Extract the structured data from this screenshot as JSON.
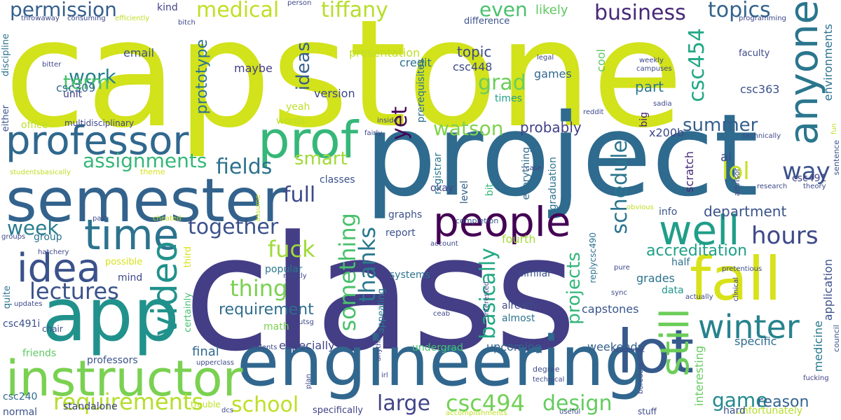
{
  "palette": [
    "#440154",
    "#482475",
    "#414487",
    "#355f8d",
    "#2a788e",
    "#21918c",
    "#22a884",
    "#44bf70",
    "#7ad151",
    "#bddf26"
  ],
  "words": [
    {
      "text": "capstone",
      "c": "#d2e21b"
    },
    {
      "text": "project",
      "c": "#2e6b8e"
    },
    {
      "text": "class",
      "c": "#433e85"
    },
    {
      "text": "engineering",
      "c": "#31678e"
    },
    {
      "text": "semester",
      "c": "#33638d"
    },
    {
      "text": "professor",
      "c": "#30688e"
    },
    {
      "text": "instructor",
      "c": "#7ad151"
    },
    {
      "text": "app",
      "c": "#21918c"
    },
    {
      "text": "idea",
      "c": "#3b528b"
    },
    {
      "text": "time",
      "c": "#2c738e"
    },
    {
      "text": "video",
      "c": "#21918c"
    },
    {
      "text": "prof",
      "c": "#35b779"
    },
    {
      "text": "people",
      "c": "#440154"
    },
    {
      "text": "fall",
      "c": "#d8e219"
    },
    {
      "text": "lot",
      "c": "#375a8c"
    },
    {
      "text": "well",
      "c": "#1f9e89"
    },
    {
      "text": "anyone",
      "c": "#2a768e"
    },
    {
      "text": "still",
      "c": "#6ccd5a"
    },
    {
      "text": "winter",
      "c": "#26828e"
    },
    {
      "text": "hours",
      "c": "#3e4989"
    },
    {
      "text": "lol",
      "c": "#c8e020"
    },
    {
      "text": "way",
      "c": "#3b528b"
    },
    {
      "text": "csc454",
      "c": "#22a884"
    },
    {
      "text": "topics",
      "c": "#33638d"
    },
    {
      "text": "business",
      "c": "#482878"
    },
    {
      "text": "tiffany",
      "c": "#b5de2b"
    },
    {
      "text": "medical",
      "c": "#c0df25"
    },
    {
      "text": "permission",
      "c": "#355f8d"
    },
    {
      "text": "work",
      "c": "#26828e"
    },
    {
      "text": "term",
      "c": "#4ac16d"
    },
    {
      "text": "assignments",
      "c": "#35b779"
    },
    {
      "text": "lectures",
      "c": "#3b528b"
    },
    {
      "text": "week",
      "c": "#287c8e"
    },
    {
      "text": "fields",
      "c": "#2c728e"
    },
    {
      "text": "full",
      "c": "#3e4a89"
    },
    {
      "text": "together",
      "c": "#3b528b"
    },
    {
      "text": "fuck",
      "c": "#a0da39"
    },
    {
      "text": "thing",
      "c": "#7ad151"
    },
    {
      "text": "something",
      "c": "#4ac16d"
    },
    {
      "text": "thanks",
      "c": "#2a788e"
    },
    {
      "text": "requirement",
      "c": "#2e6d8e"
    },
    {
      "text": "requirements",
      "c": "#b5de2b"
    },
    {
      "text": "school",
      "c": "#bddf26"
    },
    {
      "text": "csc494",
      "c": "#73d056"
    },
    {
      "text": "large",
      "c": "#414487"
    },
    {
      "text": "design",
      "c": "#63cb5f"
    },
    {
      "text": "game",
      "c": "#23898e"
    },
    {
      "text": "reason",
      "c": "#33638d"
    },
    {
      "text": "basically",
      "c": "#23a983"
    },
    {
      "text": "projects",
      "c": "#32b67a"
    },
    {
      "text": "schedule",
      "c": "#2b758e"
    },
    {
      "text": "summer",
      "c": "#355f8d"
    },
    {
      "text": "watson",
      "c": "#7fd34e"
    },
    {
      "text": "smart",
      "c": "#a0da39"
    },
    {
      "text": "ideas",
      "c": "#355f8d"
    },
    {
      "text": "grad",
      "c": "#6ccd5a"
    },
    {
      "text": "even",
      "c": "#4ac16d"
    },
    {
      "text": "yet",
      "c": "#440154"
    },
    {
      "text": "accreditation",
      "c": "#1fa088"
    },
    {
      "text": "department",
      "c": "#3b528b"
    },
    {
      "text": "likely",
      "c": "#5ec962"
    },
    {
      "text": "topic",
      "c": "#3e4989"
    },
    {
      "text": "csc448",
      "c": "#3e4989"
    },
    {
      "text": "part",
      "c": "#2a778e"
    },
    {
      "text": "ai",
      "c": "#3e4a89"
    },
    {
      "text": "probably",
      "c": "#424086"
    },
    {
      "text": "prototype",
      "c": "#2c728e"
    },
    {
      "text": "cool",
      "c": "#5ec962"
    },
    {
      "text": "games",
      "c": "#31688e"
    },
    {
      "text": "presentation",
      "c": "#bddf26"
    },
    {
      "text": "credit",
      "c": "#2c728e"
    },
    {
      "text": "version",
      "c": "#3e4989"
    },
    {
      "text": "maybe",
      "c": "#433e85"
    },
    {
      "text": "email",
      "c": "#3b528b"
    },
    {
      "text": "csc309",
      "c": "#2e6b8e"
    },
    {
      "text": "unit",
      "c": "#424086"
    },
    {
      "text": "kind",
      "c": "#414487"
    },
    {
      "text": "yeah",
      "c": "#bddf26"
    },
    {
      "text": "medicine",
      "c": "#2a788e"
    },
    {
      "text": "environments",
      "c": "#2c728e"
    },
    {
      "text": "csc363",
      "c": "#3b528b"
    },
    {
      "text": "faculty",
      "c": "#3e4a89"
    },
    {
      "text": "x200b",
      "c": "#3e4989"
    },
    {
      "text": "big",
      "c": "#481f70"
    },
    {
      "text": "csc491",
      "c": "#414487"
    },
    {
      "text": "info",
      "c": "#3b528b"
    },
    {
      "text": "half",
      "c": "#2d718e"
    },
    {
      "text": "grades",
      "c": "#2c738e"
    },
    {
      "text": "data",
      "c": "#1f968b"
    },
    {
      "text": "capstones",
      "c": "#39568c"
    },
    {
      "text": "interesting",
      "c": "#65cb5e"
    },
    {
      "text": "specific",
      "c": "#2f6c8e"
    },
    {
      "text": "application",
      "c": "#3b528b"
    },
    {
      "text": "final",
      "c": "#30698e"
    },
    {
      "text": "especially",
      "c": "#414487"
    },
    {
      "text": "upcoming",
      "c": "#33638d"
    },
    {
      "text": "weekends",
      "c": "#35608d"
    },
    {
      "text": "undergrad",
      "c": "#44bf70"
    },
    {
      "text": "already",
      "c": "#3e4a89"
    },
    {
      "text": "almost",
      "c": "#2c728e"
    },
    {
      "text": "fourth",
      "c": "#a5db36"
    },
    {
      "text": "similar",
      "c": "#3b528b"
    },
    {
      "text": "systems",
      "c": "#2c728e"
    },
    {
      "text": "popular",
      "c": "#2a788e"
    },
    {
      "text": "math",
      "c": "#7ad151"
    },
    {
      "text": "report",
      "c": "#3b528b"
    },
    {
      "text": "graphs",
      "c": "#3b528b"
    },
    {
      "text": "classes",
      "c": "#3b528b"
    },
    {
      "text": "completion",
      "c": "#39568c"
    },
    {
      "text": "okay",
      "c": "#414487"
    },
    {
      "text": "level",
      "c": "#35608d"
    },
    {
      "text": "bit",
      "c": "#35b779"
    },
    {
      "text": "registrar",
      "c": "#2a788e"
    },
    {
      "text": "prerequisites",
      "c": "#2c738e"
    },
    {
      "text": "everything",
      "c": "#30698e"
    },
    {
      "text": "graduation",
      "c": "#2c728e"
    },
    {
      "text": "scratch",
      "c": "#482878"
    },
    {
      "text": "times",
      "c": "#1f9e89"
    },
    {
      "text": "difference",
      "c": "#3b528b"
    },
    {
      "text": "words",
      "c": "#bddf26"
    },
    {
      "text": "office",
      "c": "#bddf26"
    },
    {
      "text": "multidisciplinary",
      "c": "#3e4989"
    },
    {
      "text": "group",
      "c": "#2c728e"
    },
    {
      "text": "mind",
      "c": "#3e4989"
    },
    {
      "text": "possible",
      "c": "#d8e219"
    },
    {
      "text": "theme",
      "c": "#d8e219"
    },
    {
      "text": "professors",
      "c": "#3b528b"
    },
    {
      "text": "friends",
      "c": "#5ec962"
    },
    {
      "text": "csc491i",
      "c": "#3b528b"
    },
    {
      "text": "csc240",
      "c": "#30698e"
    },
    {
      "text": "normal",
      "c": "#3b528b"
    },
    {
      "text": "standalone",
      "c": "#414487"
    },
    {
      "text": "trouble",
      "c": "#bddf26"
    },
    {
      "text": "specifically",
      "c": "#414487"
    },
    {
      "text": "unfortunately",
      "c": "#b5de2b"
    },
    {
      "text": "hard",
      "c": "#3b528b"
    },
    {
      "text": "stuff",
      "c": "#3e4a89"
    },
    {
      "text": "quite",
      "c": "#2c728e"
    },
    {
      "text": "either",
      "c": "#3b528b"
    },
    {
      "text": "discipline",
      "c": "#2c728e"
    },
    {
      "text": "chair",
      "c": "#3b528b"
    },
    {
      "text": "updates",
      "c": "#3e4989"
    },
    {
      "text": "third",
      "c": "#d8e219"
    },
    {
      "text": "certainly",
      "c": "#44bf70"
    },
    {
      "text": "appealing",
      "c": "#2a788e"
    },
    {
      "text": "replycsc490",
      "c": "#2c728e"
    },
    {
      "text": "advisor",
      "c": "#3e4989"
    },
    {
      "text": "sentence",
      "c": "#3b528b"
    },
    {
      "text": "council",
      "c": "#3b528b"
    },
    {
      "text": "fucking",
      "c": "#414487"
    },
    {
      "text": "research",
      "c": "#3e4989"
    },
    {
      "text": "theory",
      "c": "#3e4989"
    },
    {
      "text": "clinical",
      "c": "#3e4989"
    },
    {
      "text": "actually",
      "c": "#3e4989"
    },
    {
      "text": "pretentious",
      "c": "#3e4989"
    },
    {
      "text": "pure",
      "c": "#3e4989"
    },
    {
      "text": "sync",
      "c": "#3e4989"
    },
    {
      "text": "obvious",
      "c": "#bddf26"
    },
    {
      "text": "interested",
      "c": "#3e4989"
    },
    {
      "text": "account",
      "c": "#3e4989"
    },
    {
      "text": "ceab",
      "c": "#3e4989"
    },
    {
      "text": "academic",
      "c": "#3e4989"
    },
    {
      "text": "boredom",
      "c": "#3e4989"
    },
    {
      "text": "degree",
      "c": "#3e4989"
    },
    {
      "text": "technical",
      "c": "#3e4989"
    },
    {
      "text": "useful",
      "c": "#3e4989"
    },
    {
      "text": "accomplishments",
      "c": "#bddf26"
    },
    {
      "text": "irl",
      "c": "#3e4989"
    },
    {
      "text": "plan",
      "c": "#3e4989"
    },
    {
      "text": "anything",
      "c": "#3e4989"
    },
    {
      "text": "dcs",
      "c": "#3e4989"
    },
    {
      "text": "upperclass",
      "c": "#3e4989"
    },
    {
      "text": "students",
      "c": "#3e4989"
    },
    {
      "text": "utsg",
      "c": "#3e4989"
    },
    {
      "text": "mostly",
      "c": "#3e4989"
    },
    {
      "text": "assume",
      "c": "#bddf26"
    },
    {
      "text": "cheated",
      "c": "#bddf26"
    },
    {
      "text": "past",
      "c": "#3e4989"
    },
    {
      "text": "hatchery",
      "c": "#3e4989"
    },
    {
      "text": "groups",
      "c": "#3e4989"
    },
    {
      "text": "studentsbasically",
      "c": "#bddf26"
    },
    {
      "text": "bitter",
      "c": "#3e4989"
    },
    {
      "text": "throwaway",
      "c": "#3e4989"
    },
    {
      "text": "consuming",
      "c": "#3e4989"
    },
    {
      "text": "efficiently",
      "c": "#bddf26"
    },
    {
      "text": "bitch",
      "c": "#3e4989"
    },
    {
      "text": "person",
      "c": "#3e4989"
    },
    {
      "text": "programming",
      "c": "#3e4989"
    },
    {
      "text": "legal",
      "c": "#3e4989"
    },
    {
      "text": "weekly",
      "c": "#3e4989"
    },
    {
      "text": "campuses",
      "c": "#3e4989"
    },
    {
      "text": "reddit",
      "c": "#3e4989"
    },
    {
      "text": "sadia",
      "c": "#3e4989"
    },
    {
      "text": "inside",
      "c": "#3e4989"
    },
    {
      "text": "fairly",
      "c": "#3e4989"
    },
    {
      "text": "technically",
      "c": "#3e4989"
    },
    {
      "text": "case",
      "c": "#3e4989"
    },
    {
      "text": "fun",
      "c": "#bddf26"
    }
  ]
}
